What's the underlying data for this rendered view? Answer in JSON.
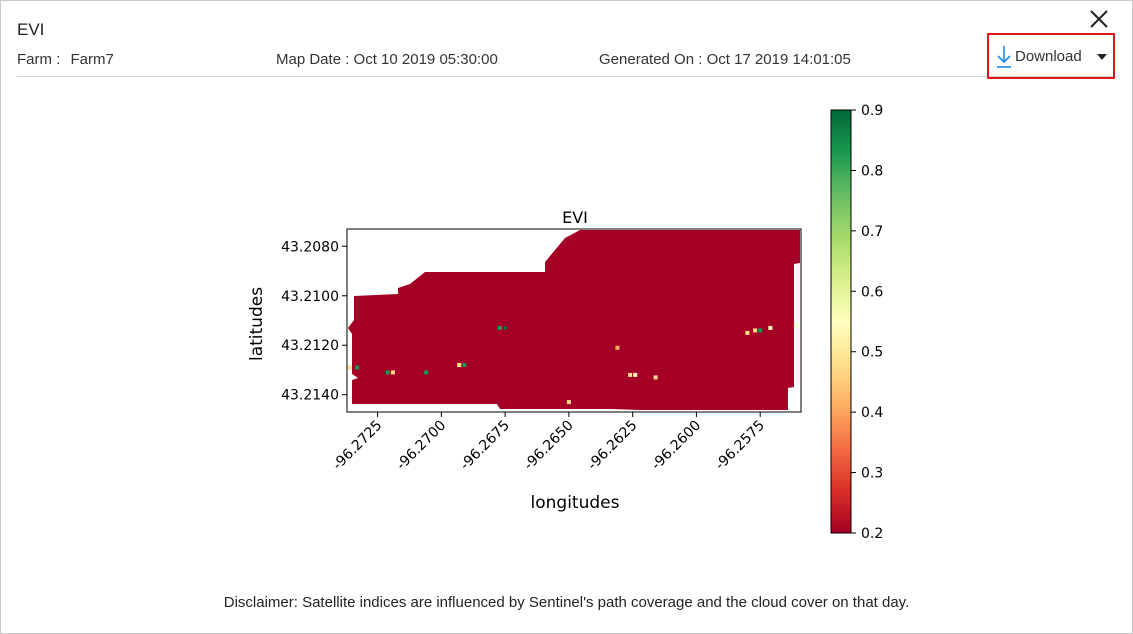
{
  "panel": {
    "title": "EVI",
    "farm_label": "Farm :",
    "farm_value": "Farm7",
    "map_date_label": "Map Date :",
    "map_date_value": "Oct 10 2019 05:30:00",
    "generated_label": "Generated On :",
    "generated_value": "Oct 17 2019 14:01:05",
    "download_label": "Download",
    "close_icon": "close-icon",
    "download_icon": "download-arrow-icon",
    "caret_icon": "caret-down-icon",
    "accent_color": "#1e88e5",
    "highlight_color": "#e0141e"
  },
  "chart_data": {
    "type": "heatmap",
    "title": "EVI",
    "xlabel": "longitudes",
    "ylabel": "latitudes",
    "x_ticks": [
      "-96.2725",
      "-96.2700",
      "-96.2675",
      "-96.2650",
      "-96.2625",
      "-96.2600",
      "-96.2575"
    ],
    "x_tick_values": [
      -96.2725,
      -96.27,
      -96.2675,
      -96.265,
      -96.2625,
      -96.26,
      -96.2575
    ],
    "y_ticks": [
      "43.2080",
      "43.2100",
      "43.2120",
      "43.2140"
    ],
    "y_tick_values": [
      43.208,
      43.21,
      43.212,
      43.214
    ],
    "xlim": [
      -96.2737,
      -96.2559
    ],
    "ylim": [
      43.2147,
      43.2073
    ],
    "colorbar": {
      "colormap": "RdYlGn",
      "range": [
        0.2,
        0.9
      ],
      "ticks": [
        "0.9",
        "0.8",
        "0.7",
        "0.6",
        "0.5",
        "0.4",
        "0.3",
        "0.2"
      ],
      "tick_values": [
        0.9,
        0.8,
        0.7,
        0.6,
        0.5,
        0.4,
        0.3,
        0.2
      ]
    },
    "dominant_value": 0.2,
    "dominant_color": "#a50026",
    "spots": [
      {
        "lon": -96.2736,
        "lat": 43.2129,
        "value": 0.5
      },
      {
        "lon": -96.2733,
        "lat": 43.2129,
        "value": 0.8
      },
      {
        "lon": -96.2721,
        "lat": 43.2131,
        "value": 0.85
      },
      {
        "lon": -96.2719,
        "lat": 43.2131,
        "value": 0.5
      },
      {
        "lon": -96.2706,
        "lat": 43.2131,
        "value": 0.85
      },
      {
        "lon": -96.2693,
        "lat": 43.2128,
        "value": 0.45
      },
      {
        "lon": -96.2691,
        "lat": 43.2128,
        "value": 0.8
      },
      {
        "lon": -96.2677,
        "lat": 43.2113,
        "value": 0.85
      },
      {
        "lon": -96.2675,
        "lat": 43.2113,
        "value": 0.9
      },
      {
        "lon": -96.2631,
        "lat": 43.2121,
        "value": 0.4
      },
      {
        "lon": -96.2626,
        "lat": 43.2132,
        "value": 0.45
      },
      {
        "lon": -96.2624,
        "lat": 43.2132,
        "value": 0.55
      },
      {
        "lon": -96.2616,
        "lat": 43.2133,
        "value": 0.5
      },
      {
        "lon": -96.265,
        "lat": 43.2143,
        "value": 0.45
      },
      {
        "lon": -96.258,
        "lat": 43.2115,
        "value": 0.5
      },
      {
        "lon": -96.2577,
        "lat": 43.2114,
        "value": 0.45
      },
      {
        "lon": -96.2575,
        "lat": 43.2114,
        "value": 0.85
      },
      {
        "lon": -96.2571,
        "lat": 43.2113,
        "value": 0.55
      },
      {
        "lon": -96.2561,
        "lat": 43.2112,
        "value": 0.55
      }
    ]
  },
  "footer": {
    "disclaimer": "Disclaimer: Satellite indices are influenced by Sentinel's path coverage and the cloud cover on that day."
  }
}
